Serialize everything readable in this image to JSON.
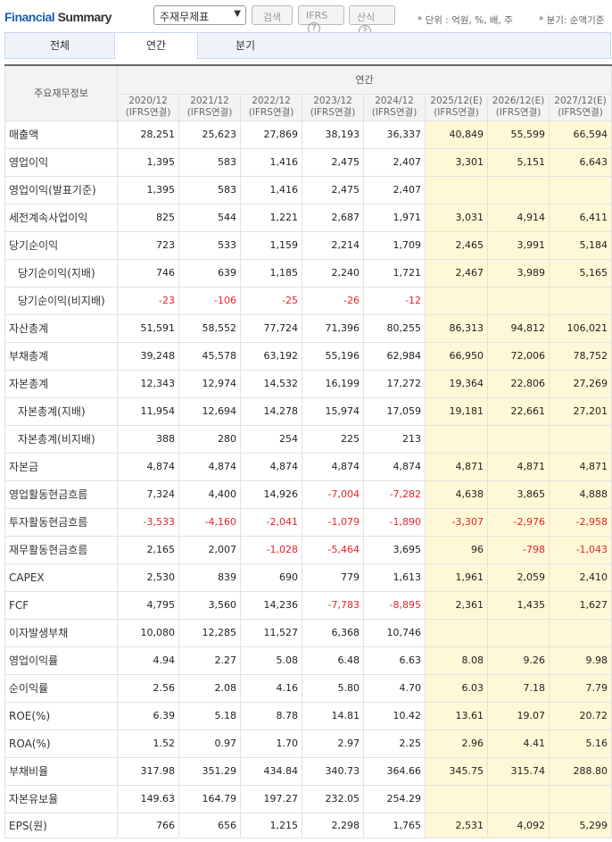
{
  "header": {
    "title_part1": "Financial",
    "title_part2": "Summary",
    "select_value": "주재무제표",
    "search_label": "검색",
    "ifrs_label": "IFRS",
    "sansik_label": "산식",
    "unit_note": "* 단위 : 억원, %, 배, 주",
    "quarter_note": "* 분기: 순액기준",
    "help_glyph": "?"
  },
  "tabs": {
    "all": "전체",
    "annual": "연간",
    "quarter": "분기"
  },
  "table": {
    "corner_label": "주요재무정보",
    "group_header": "연간",
    "columns": [
      {
        "period": "2020/12",
        "basis": "(IFRS연결)",
        "estimate": false
      },
      {
        "period": "2021/12",
        "basis": "(IFRS연결)",
        "estimate": false
      },
      {
        "period": "2022/12",
        "basis": "(IFRS연결)",
        "estimate": false
      },
      {
        "period": "2023/12",
        "basis": "(IFRS연결)",
        "estimate": false
      },
      {
        "period": "2024/12",
        "basis": "(IFRS연결)",
        "estimate": false
      },
      {
        "period": "2025/12(E)",
        "basis": "(IFRS연결)",
        "estimate": true
      },
      {
        "period": "2026/12(E)",
        "basis": "(IFRS연결)",
        "estimate": true
      },
      {
        "period": "2027/12(E)",
        "basis": "(IFRS연결)",
        "estimate": true
      }
    ],
    "rows": [
      {
        "label": "매출액",
        "sub": false,
        "values": [
          "28,251",
          "25,623",
          "27,869",
          "38,193",
          "36,337",
          "40,849",
          "55,599",
          "66,594"
        ]
      },
      {
        "label": "영업이익",
        "sub": false,
        "values": [
          "1,395",
          "583",
          "1,416",
          "2,475",
          "2,407",
          "3,301",
          "5,151",
          "6,643"
        ]
      },
      {
        "label": "영업이익(발표기준)",
        "sub": false,
        "values": [
          "1,395",
          "583",
          "1,416",
          "2,475",
          "2,407",
          "",
          "",
          ""
        ]
      },
      {
        "label": "세전계속사업이익",
        "sub": false,
        "values": [
          "825",
          "544",
          "1,221",
          "2,687",
          "1,971",
          "3,031",
          "4,914",
          "6,411"
        ]
      },
      {
        "label": "당기순이익",
        "sub": false,
        "values": [
          "723",
          "533",
          "1,159",
          "2,214",
          "1,709",
          "2,465",
          "3,991",
          "5,184"
        ]
      },
      {
        "label": "당기순이익(지배)",
        "sub": true,
        "values": [
          "746",
          "639",
          "1,185",
          "2,240",
          "1,721",
          "2,467",
          "3,989",
          "5,165"
        ]
      },
      {
        "label": "당기순이익(비지배)",
        "sub": true,
        "values": [
          "-23",
          "-106",
          "-25",
          "-26",
          "-12",
          "",
          "",
          ""
        ]
      },
      {
        "label": "자산총계",
        "sub": false,
        "values": [
          "51,591",
          "58,552",
          "77,724",
          "71,396",
          "80,255",
          "86,313",
          "94,812",
          "106,021"
        ]
      },
      {
        "label": "부채총계",
        "sub": false,
        "values": [
          "39,248",
          "45,578",
          "63,192",
          "55,196",
          "62,984",
          "66,950",
          "72,006",
          "78,752"
        ]
      },
      {
        "label": "자본총계",
        "sub": false,
        "values": [
          "12,343",
          "12,974",
          "14,532",
          "16,199",
          "17,272",
          "19,364",
          "22,806",
          "27,269"
        ]
      },
      {
        "label": "자본총계(지배)",
        "sub": true,
        "values": [
          "11,954",
          "12,694",
          "14,278",
          "15,974",
          "17,059",
          "19,181",
          "22,661",
          "27,201"
        ]
      },
      {
        "label": "자본총계(비지배)",
        "sub": true,
        "values": [
          "388",
          "280",
          "254",
          "225",
          "213",
          "",
          "",
          ""
        ]
      },
      {
        "label": "자본금",
        "sub": false,
        "values": [
          "4,874",
          "4,874",
          "4,874",
          "4,874",
          "4,874",
          "4,871",
          "4,871",
          "4,871"
        ]
      },
      {
        "label": "영업활동현금흐름",
        "sub": false,
        "values": [
          "7,324",
          "4,400",
          "14,926",
          "-7,004",
          "-7,282",
          "4,638",
          "3,865",
          "4,888"
        ]
      },
      {
        "label": "투자활동현금흐름",
        "sub": false,
        "values": [
          "-3,533",
          "-4,160",
          "-2,041",
          "-1,079",
          "-1,890",
          "-3,307",
          "-2,976",
          "-2,958"
        ]
      },
      {
        "label": "재무활동현금흐름",
        "sub": false,
        "values": [
          "2,165",
          "2,007",
          "-1,028",
          "-5,464",
          "3,695",
          "96",
          "-798",
          "-1,043"
        ]
      },
      {
        "label": "CAPEX",
        "sub": false,
        "values": [
          "2,530",
          "839",
          "690",
          "779",
          "1,613",
          "1,961",
          "2,059",
          "2,410"
        ]
      },
      {
        "label": "FCF",
        "sub": false,
        "values": [
          "4,795",
          "3,560",
          "14,236",
          "-7,783",
          "-8,895",
          "2,361",
          "1,435",
          "1,627"
        ]
      },
      {
        "label": "이자발생부채",
        "sub": false,
        "values": [
          "10,080",
          "12,285",
          "11,527",
          "6,368",
          "10,746",
          "",
          "",
          ""
        ]
      },
      {
        "label": "영업이익률",
        "sub": false,
        "values": [
          "4.94",
          "2.27",
          "5.08",
          "6.48",
          "6.63",
          "8.08",
          "9.26",
          "9.98"
        ]
      },
      {
        "label": "순이익률",
        "sub": false,
        "values": [
          "2.56",
          "2.08",
          "4.16",
          "5.80",
          "4.70",
          "6.03",
          "7.18",
          "7.79"
        ]
      },
      {
        "label": "ROE(%)",
        "sub": false,
        "values": [
          "6.39",
          "5.18",
          "8.78",
          "14.81",
          "10.42",
          "13.61",
          "19.07",
          "20.72"
        ]
      },
      {
        "label": "ROA(%)",
        "sub": false,
        "values": [
          "1.52",
          "0.97",
          "1.70",
          "2.97",
          "2.25",
          "2.96",
          "4.41",
          "5.16"
        ]
      },
      {
        "label": "부채비율",
        "sub": false,
        "values": [
          "317.98",
          "351.29",
          "434.84",
          "340.73",
          "364.66",
          "345.75",
          "315.74",
          "288.80"
        ]
      },
      {
        "label": "자본유보율",
        "sub": false,
        "values": [
          "149.63",
          "164.79",
          "197.27",
          "232.05",
          "254.29",
          "",
          "",
          ""
        ]
      },
      {
        "label": "EPS(원)",
        "sub": false,
        "values": [
          "766",
          "656",
          "1,215",
          "2,298",
          "1,765",
          "2,531",
          "4,092",
          "5,299"
        ]
      }
    ]
  },
  "colors": {
    "title_blue": "#1a5fb4",
    "estimate_bg": "#fff8d6",
    "negative_red": "#e3242b",
    "tab_bg": "#eef3fa"
  }
}
